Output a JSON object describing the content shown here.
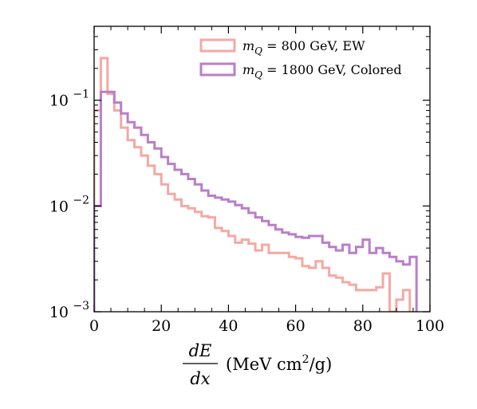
{
  "chart_data": {
    "type": "histogram",
    "title": "",
    "xlabel": {
      "fraction_numerator": "dE",
      "fraction_denominator": "dx",
      "units_prefix": "(MeV cm",
      "units_superscript": "2",
      "units_suffix": "/g)"
    },
    "ylabel": "",
    "x_scale": "linear",
    "y_scale": "log",
    "xlim": [
      0,
      100
    ],
    "ylim": [
      0.001,
      0.5
    ],
    "x_ticks": [
      {
        "value": 0,
        "label": "0"
      },
      {
        "value": 20,
        "label": "20"
      },
      {
        "value": 40,
        "label": "40"
      },
      {
        "value": 60,
        "label": "60"
      },
      {
        "value": 80,
        "label": "80"
      },
      {
        "value": 100,
        "label": "100"
      }
    ],
    "y_ticks": [
      {
        "value": 0.001,
        "base": "10",
        "exp": "−3"
      },
      {
        "value": 0.01,
        "base": "10",
        "exp": "−2"
      },
      {
        "value": 0.1,
        "base": "10",
        "exp": "−1"
      }
    ],
    "grid": false,
    "legend_position": "top-right",
    "bin_width": 2,
    "bin_start": 0,
    "series": [
      {
        "name_symbol": "m",
        "name_subscript": "Q",
        "name_text": " = 800 GeV,  EW",
        "color": "#f4a9a3",
        "values": [
          0.08,
          0.25,
          0.115,
          0.08,
          0.055,
          0.042,
          0.036,
          0.03,
          0.024,
          0.02,
          0.016,
          0.013,
          0.0115,
          0.01,
          0.0095,
          0.0088,
          0.008,
          0.0078,
          0.0062,
          0.0058,
          0.0052,
          0.0045,
          0.0048,
          0.0044,
          0.0038,
          0.0043,
          0.0036,
          0.0036,
          0.0036,
          0.0033,
          0.0032,
          0.0027,
          0.0026,
          0.003,
          0.0026,
          0.0022,
          0.0021,
          0.0019,
          0.0018,
          0.0016,
          0.0016,
          0.0016,
          0.0017,
          0.0023,
          0.001,
          0.0013,
          0.0016
        ]
      },
      {
        "name_symbol": "m",
        "name_subscript": "Q",
        "name_text": " = 1800 GeV,  Colored",
        "color": "#b97fc8",
        "values": [
          0.01,
          0.12,
          0.12,
          0.095,
          0.075,
          0.062,
          0.055,
          0.047,
          0.04,
          0.035,
          0.029,
          0.025,
          0.022,
          0.02,
          0.018,
          0.016,
          0.014,
          0.0125,
          0.012,
          0.0115,
          0.011,
          0.0102,
          0.0095,
          0.0086,
          0.0078,
          0.0072,
          0.0066,
          0.006,
          0.0056,
          0.0054,
          0.0051,
          0.005,
          0.0052,
          0.0052,
          0.0045,
          0.0041,
          0.0038,
          0.0043,
          0.0036,
          0.0041,
          0.0048,
          0.0036,
          0.004,
          0.0036,
          0.0033,
          0.003,
          0.0028,
          0.0033
        ]
      }
    ]
  }
}
